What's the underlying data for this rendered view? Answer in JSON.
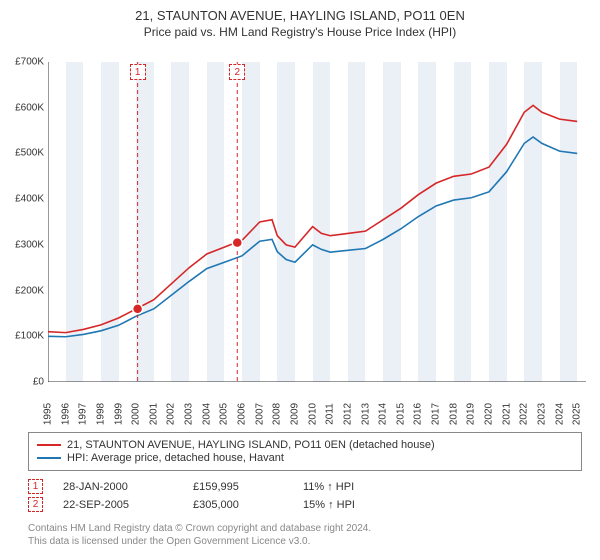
{
  "title_line1": "21, STAUNTON AVENUE, HAYLING ISLAND, PO11 0EN",
  "title_line2": "Price paid vs. HM Land Registry's House Price Index (HPI)",
  "chart": {
    "type": "line",
    "background_color": "#ffffff",
    "band_color": "#ebf0f7",
    "axis_color": "#333333",
    "grid_color": "#e0e0e0",
    "xlim": [
      1995,
      2025.5
    ],
    "ylim": [
      0,
      700
    ],
    "y_ticks": [
      0,
      100,
      200,
      300,
      400,
      500,
      600,
      700
    ],
    "y_tick_labels": [
      "£0",
      "£100K",
      "£200K",
      "£300K",
      "£400K",
      "£500K",
      "£600K",
      "£700K"
    ],
    "x_ticks": [
      1995,
      1996,
      1997,
      1998,
      1999,
      2000,
      2001,
      2002,
      2003,
      2004,
      2005,
      2006,
      2007,
      2008,
      2009,
      2010,
      2011,
      2012,
      2013,
      2014,
      2015,
      2016,
      2017,
      2018,
      2019,
      2020,
      2021,
      2022,
      2023,
      2024,
      2025
    ],
    "label_fontsize": 10,
    "title_fontsize": 13,
    "line_width": 1.6,
    "series": [
      {
        "name": "21, STAUNTON AVENUE, HAYLING ISLAND, PO11 0EN (detached house)",
        "color": "#d62728",
        "points": [
          [
            1995,
            110
          ],
          [
            1996,
            108
          ],
          [
            1997,
            115
          ],
          [
            1998,
            125
          ],
          [
            1999,
            140
          ],
          [
            2000,
            160
          ],
          [
            2001,
            180
          ],
          [
            2002,
            215
          ],
          [
            2003,
            250
          ],
          [
            2004,
            280
          ],
          [
            2005,
            295
          ],
          [
            2006,
            310
          ],
          [
            2007,
            350
          ],
          [
            2007.7,
            355
          ],
          [
            2008,
            320
          ],
          [
            2008.5,
            300
          ],
          [
            2009,
            295
          ],
          [
            2010,
            340
          ],
          [
            2010.5,
            325
          ],
          [
            2011,
            320
          ],
          [
            2012,
            325
          ],
          [
            2013,
            330
          ],
          [
            2014,
            355
          ],
          [
            2015,
            380
          ],
          [
            2016,
            410
          ],
          [
            2017,
            435
          ],
          [
            2018,
            450
          ],
          [
            2019,
            455
          ],
          [
            2020,
            470
          ],
          [
            2021,
            520
          ],
          [
            2022,
            590
          ],
          [
            2022.5,
            605
          ],
          [
            2023,
            590
          ],
          [
            2024,
            575
          ],
          [
            2025,
            570
          ]
        ]
      },
      {
        "name": "HPI: Average price, detached house, Havant",
        "color": "#1f77b4",
        "points": [
          [
            1995,
            100
          ],
          [
            1996,
            99
          ],
          [
            1997,
            104
          ],
          [
            1998,
            112
          ],
          [
            1999,
            124
          ],
          [
            2000,
            144
          ],
          [
            2001,
            160
          ],
          [
            2002,
            190
          ],
          [
            2003,
            220
          ],
          [
            2004,
            248
          ],
          [
            2005,
            262
          ],
          [
            2006,
            276
          ],
          [
            2007,
            308
          ],
          [
            2007.7,
            312
          ],
          [
            2008,
            285
          ],
          [
            2008.5,
            268
          ],
          [
            2009,
            262
          ],
          [
            2010,
            300
          ],
          [
            2010.5,
            290
          ],
          [
            2011,
            284
          ],
          [
            2012,
            288
          ],
          [
            2013,
            292
          ],
          [
            2014,
            312
          ],
          [
            2015,
            335
          ],
          [
            2016,
            362
          ],
          [
            2017,
            385
          ],
          [
            2018,
            398
          ],
          [
            2019,
            403
          ],
          [
            2020,
            416
          ],
          [
            2021,
            460
          ],
          [
            2022,
            522
          ],
          [
            2022.5,
            536
          ],
          [
            2023,
            522
          ],
          [
            2024,
            505
          ],
          [
            2025,
            500
          ]
        ]
      }
    ],
    "markers": [
      {
        "label": "1",
        "x": 2000.08,
        "y": 160
      },
      {
        "label": "2",
        "x": 2005.73,
        "y": 305
      }
    ],
    "marker_style": {
      "radius": 5,
      "fill": "#d62728",
      "border": "#ffffff",
      "callout_border": "#d62728",
      "callout_dash": "3,2"
    },
    "vlines": {
      "color": "#d62728",
      "dash": "4,3",
      "width": 1
    }
  },
  "legend": {
    "items": [
      {
        "color": "#d62728",
        "label": "21, STAUNTON AVENUE, HAYLING ISLAND, PO11 0EN (detached house)"
      },
      {
        "color": "#1f77b4",
        "label": "HPI: Average price, detached house, Havant"
      }
    ]
  },
  "events": [
    {
      "marker": "1",
      "date": "28-JAN-2000",
      "price": "£159,995",
      "delta": "11% ↑ HPI"
    },
    {
      "marker": "2",
      "date": "22-SEP-2005",
      "price": "£305,000",
      "delta": "15% ↑ HPI"
    }
  ],
  "footer_line1": "Contains HM Land Registry data © Crown copyright and database right 2024.",
  "footer_line2": "This data is licensed under the Open Government Licence v3.0."
}
